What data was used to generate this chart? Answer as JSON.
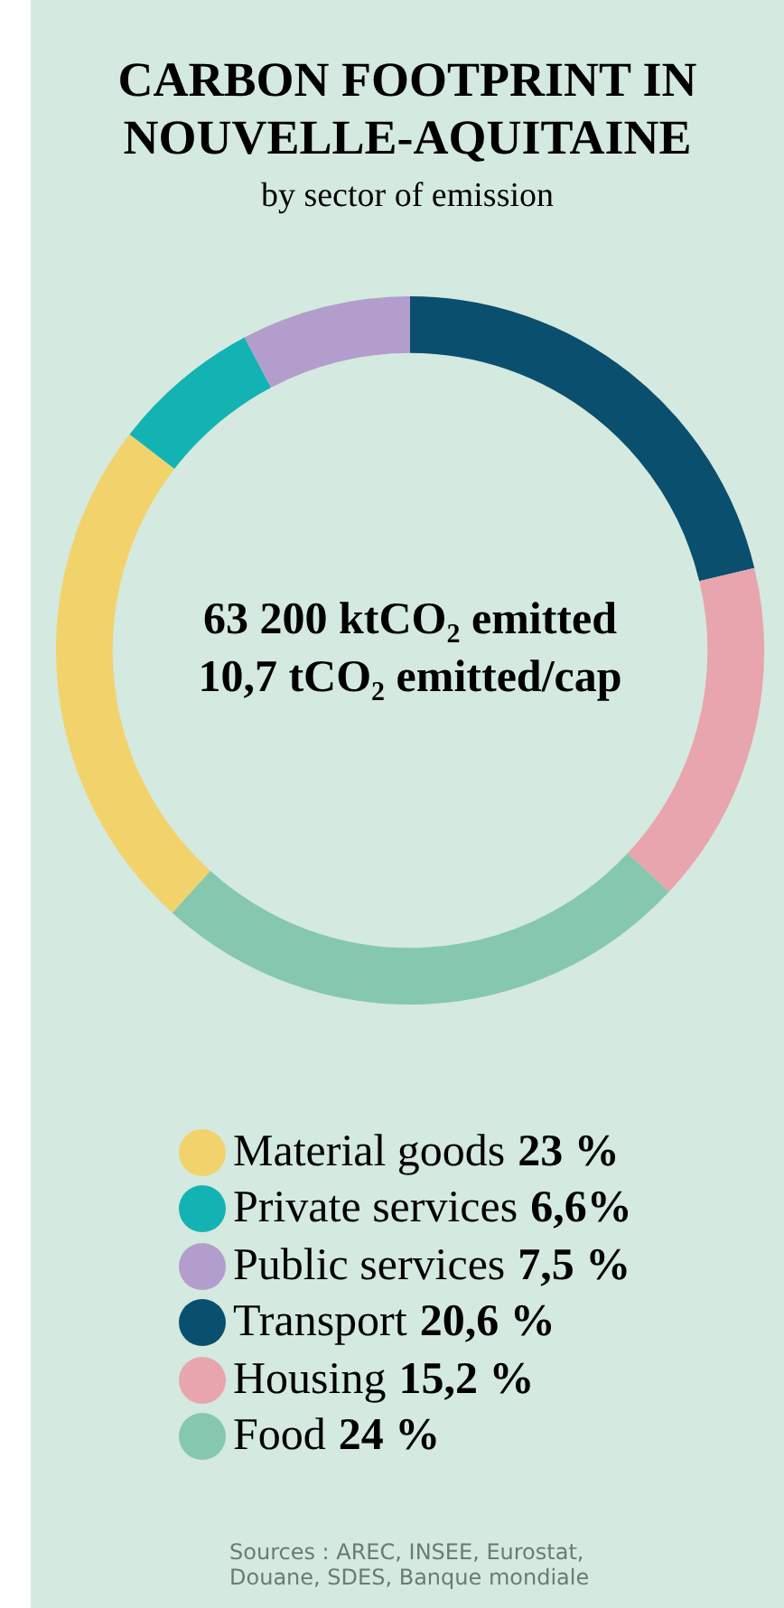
{
  "chart_data": {
    "type": "donut",
    "title": "CARBON FOOTPRINT IN NOUVELLE-AQUITAINE",
    "subtitle": "by sector of emission",
    "categories": [
      "Material goods",
      "Private services",
      "Public services",
      "Transport",
      "Housing",
      "Food"
    ],
    "values": [
      23,
      6.6,
      7.5,
      20.6,
      15.2,
      24
    ],
    "value_labels": [
      "23 %",
      "6,6%",
      "7,5 %",
      "20,6 %",
      "15,2 %",
      "24 %"
    ],
    "colors": [
      "#f2d36b",
      "#14b3b3",
      "#b39dcc",
      "#0a4f6e",
      "#e8a5ad",
      "#86c7b0"
    ],
    "legend": "bottom",
    "annotations": [
      "63 200 ktCO₂ emitted",
      "10,7 tCO₂ emitted/cap",
      "Sources : AREC, INSEE, Eurostat, Douane, SDES, Banque mondiale"
    ]
  }
}
